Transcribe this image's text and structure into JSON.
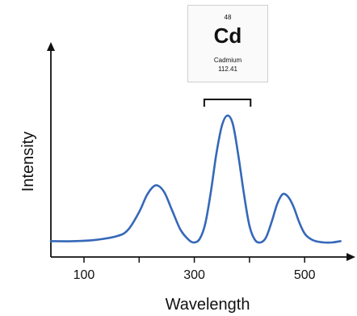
{
  "element": {
    "atomic_number": "48",
    "symbol": "Cd",
    "name": "Cadmium",
    "atomic_mass": "112.41"
  },
  "chart_data": {
    "type": "line",
    "title": "",
    "xlabel": "Wavelength",
    "ylabel": "Intensity",
    "xlim": [
      40,
      570
    ],
    "ylim": [
      0,
      1
    ],
    "xticks": [
      100,
      300,
      500
    ],
    "x_minor_ticks": [
      100,
      200,
      300,
      400,
      500
    ],
    "highlight_range": [
      318,
      402
    ],
    "grid": false,
    "line_color": "#3568b8",
    "series": [
      {
        "x": [
          40,
          80,
          120,
          160,
          180,
          200,
          215,
          230,
          245,
          260,
          275,
          290,
          300,
          310,
          320,
          330,
          340,
          350,
          360,
          370,
          380,
          390,
          400,
          410,
          420,
          430,
          440,
          450,
          460,
          470,
          480,
          490,
          500,
          510,
          520,
          535,
          550,
          565
        ],
        "y": [
          0.01,
          0.01,
          0.02,
          0.05,
          0.1,
          0.24,
          0.38,
          0.45,
          0.4,
          0.25,
          0.1,
          0.02,
          0.0,
          0.03,
          0.15,
          0.4,
          0.7,
          0.92,
          1.0,
          0.93,
          0.68,
          0.38,
          0.13,
          0.02,
          0.0,
          0.04,
          0.16,
          0.3,
          0.38,
          0.36,
          0.28,
          0.16,
          0.07,
          0.03,
          0.01,
          0.0,
          0.0,
          0.01
        ]
      }
    ]
  }
}
